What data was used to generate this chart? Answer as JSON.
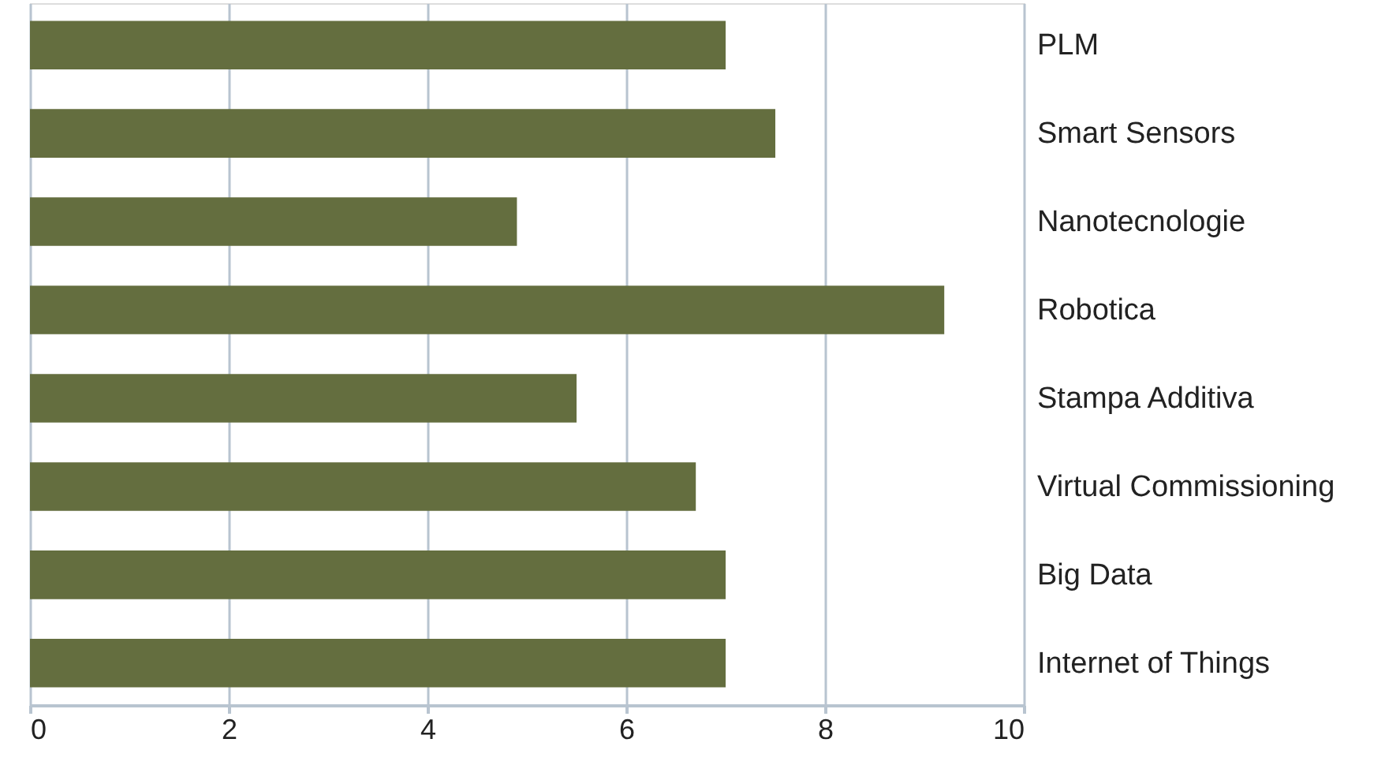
{
  "chart_data": {
    "type": "bar",
    "orientation": "horizontal",
    "categories": [
      "PLM",
      "Smart Sensors",
      "Nanotecnologie",
      "Robotica",
      "Stampa Additiva",
      "Virtual Commissioning",
      "Big Data",
      "Internet of Things"
    ],
    "values": [
      7.0,
      7.5,
      4.9,
      9.2,
      5.5,
      6.7,
      7.0,
      7.0
    ],
    "color": "#646e3f",
    "xlim": [
      0,
      10
    ],
    "xticks": [
      0,
      2,
      4,
      6,
      8,
      10
    ],
    "grid": "x"
  }
}
